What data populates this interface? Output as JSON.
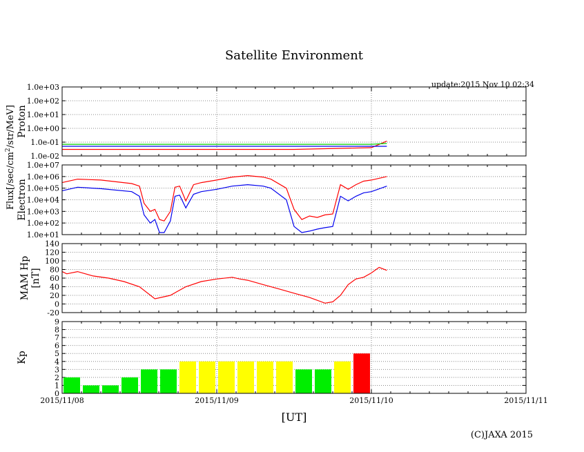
{
  "title": "Satellite Environment",
  "update": "update:2015 Nov 10 02:34",
  "copyright": "(C)JAXA 2015",
  "xaxis": {
    "label": "[UT]",
    "ticks": [
      "2015/11/08",
      "2015/11/09",
      "2015/11/10",
      "2015/11/11"
    ]
  },
  "shared_ylabel": "Flux[/sec/cm2/str/MeV]",
  "colors": {
    "red": "#ff0000",
    "blue": "#0000ee",
    "green": "#00cc00",
    "green_bar": "#00ee00",
    "yellow_bar": "#ffff00",
    "red_bar": "#ff0000"
  },
  "chart_data": [
    {
      "type": "line",
      "name": "Proton",
      "ylabel": "Proton",
      "yscale": "log",
      "ylim": [
        0.01,
        1000
      ],
      "ytick_labels": [
        "1.0e-02",
        "1.0e-01",
        "1.0e+00",
        "1.0e+01",
        "1.0e+02",
        "1.0e+03"
      ],
      "x_unit": "days since 2015/11/08 00:00 UT",
      "xlim": [
        0,
        3
      ],
      "series": [
        {
          "name": "red channel",
          "color": "red",
          "x": [
            0,
            0.5,
            1.0,
            1.5,
            2.0,
            2.1
          ],
          "values": [
            0.03,
            0.03,
            0.03,
            0.03,
            0.04,
            0.12
          ]
        },
        {
          "name": "green channel",
          "color": "green",
          "x": [
            0,
            0.5,
            1.0,
            1.5,
            2.0,
            2.1
          ],
          "values": [
            0.07,
            0.07,
            0.07,
            0.07,
            0.07,
            0.08
          ]
        },
        {
          "name": "blue channel",
          "color": "blue",
          "x": [
            0,
            0.5,
            1.0,
            1.5,
            2.0,
            2.1
          ],
          "values": [
            0.05,
            0.05,
            0.05,
            0.05,
            0.05,
            0.05
          ]
        }
      ]
    },
    {
      "type": "line",
      "name": "Electron",
      "ylabel": "Electron",
      "yscale": "log",
      "ylim": [
        10,
        10000000
      ],
      "ytick_labels": [
        "1.0e+01",
        "1.0e+02",
        "1.0e+03",
        "1.0e+04",
        "1.0e+05",
        "1.0e+06",
        "1.0e+07"
      ],
      "x_unit": "days since 2015/11/08 00:00 UT",
      "xlim": [
        0,
        3
      ],
      "series": [
        {
          "name": "red channel",
          "color": "red",
          "x": [
            0,
            0.1,
            0.25,
            0.45,
            0.5,
            0.53,
            0.57,
            0.6,
            0.63,
            0.66,
            0.7,
            0.73,
            0.76,
            0.8,
            0.85,
            0.9,
            1.0,
            1.1,
            1.2,
            1.3,
            1.35,
            1.45,
            1.5,
            1.55,
            1.6,
            1.65,
            1.7,
            1.75,
            1.8,
            1.85,
            1.9,
            1.95,
            2.0,
            2.1
          ],
          "values": [
            300000,
            600000,
            500000,
            250000,
            150000,
            5000,
            1000,
            1500,
            200,
            150,
            1000,
            120000,
            150000,
            8000,
            200000,
            300000,
            500000,
            900000,
            1200000,
            900000,
            600000,
            100000,
            1500,
            200,
            400,
            300,
            500,
            600,
            200000,
            80000,
            200000,
            400000,
            500000,
            1000000
          ]
        },
        {
          "name": "blue channel",
          "color": "blue",
          "x": [
            0,
            0.1,
            0.25,
            0.45,
            0.5,
            0.53,
            0.57,
            0.6,
            0.63,
            0.66,
            0.7,
            0.73,
            0.76,
            0.8,
            0.85,
            0.9,
            1.0,
            1.1,
            1.2,
            1.3,
            1.35,
            1.45,
            1.5,
            1.55,
            1.6,
            1.65,
            1.7,
            1.75,
            1.8,
            1.85,
            1.9,
            1.95,
            2.0,
            2.1
          ],
          "values": [
            60000,
            120000,
            90000,
            50000,
            20000,
            500,
            100,
            200,
            15,
            15,
            150,
            20000,
            25000,
            2000,
            30000,
            50000,
            80000,
            150000,
            200000,
            150000,
            100000,
            10000,
            50,
            15,
            20,
            30,
            40,
            50,
            20000,
            8000,
            20000,
            40000,
            50000,
            150000
          ]
        }
      ]
    },
    {
      "type": "line",
      "name": "MAM Hp",
      "ylabel": "MAM Hp [nT]",
      "ylabel_lines": [
        "MAM Hp",
        "[nT]"
      ],
      "ylim": [
        -20,
        140
      ],
      "ytick_labels": [
        "-20",
        "0",
        "20",
        "40",
        "60",
        "80",
        "100",
        "120",
        "140"
      ],
      "x_unit": "days since 2015/11/08 00:00 UT",
      "xlim": [
        0,
        3
      ],
      "series": [
        {
          "name": "Hp",
          "color": "red",
          "x": [
            0,
            0.03,
            0.1,
            0.2,
            0.3,
            0.4,
            0.5,
            0.6,
            0.7,
            0.8,
            0.9,
            1.0,
            1.1,
            1.15,
            1.2,
            1.3,
            1.4,
            1.5,
            1.6,
            1.7,
            1.75,
            1.8,
            1.85,
            1.9,
            1.95,
            2.0,
            2.05,
            2.1
          ],
          "values": [
            75,
            70,
            75,
            65,
            60,
            52,
            40,
            12,
            20,
            40,
            52,
            58,
            62,
            58,
            55,
            45,
            35,
            25,
            15,
            2,
            5,
            20,
            45,
            58,
            62,
            72,
            85,
            78
          ]
        }
      ]
    },
    {
      "type": "bar",
      "name": "Kp",
      "ylabel": "Kp",
      "ylim": [
        0,
        9
      ],
      "ytick_labels": [
        "0",
        "1",
        "2",
        "3",
        "4",
        "5",
        "6",
        "7",
        "8",
        "9"
      ],
      "x_unit": "3-hour intervals starting 2015/11/08 00:00 UT",
      "values": [
        2,
        1,
        1,
        2,
        3,
        3,
        4,
        4,
        4,
        4,
        4,
        4,
        3,
        3,
        4,
        5
      ],
      "colors": [
        "green",
        "green",
        "green",
        "green",
        "green",
        "green",
        "yellow",
        "yellow",
        "yellow",
        "yellow",
        "yellow",
        "yellow",
        "green",
        "green",
        "yellow",
        "red"
      ]
    }
  ]
}
